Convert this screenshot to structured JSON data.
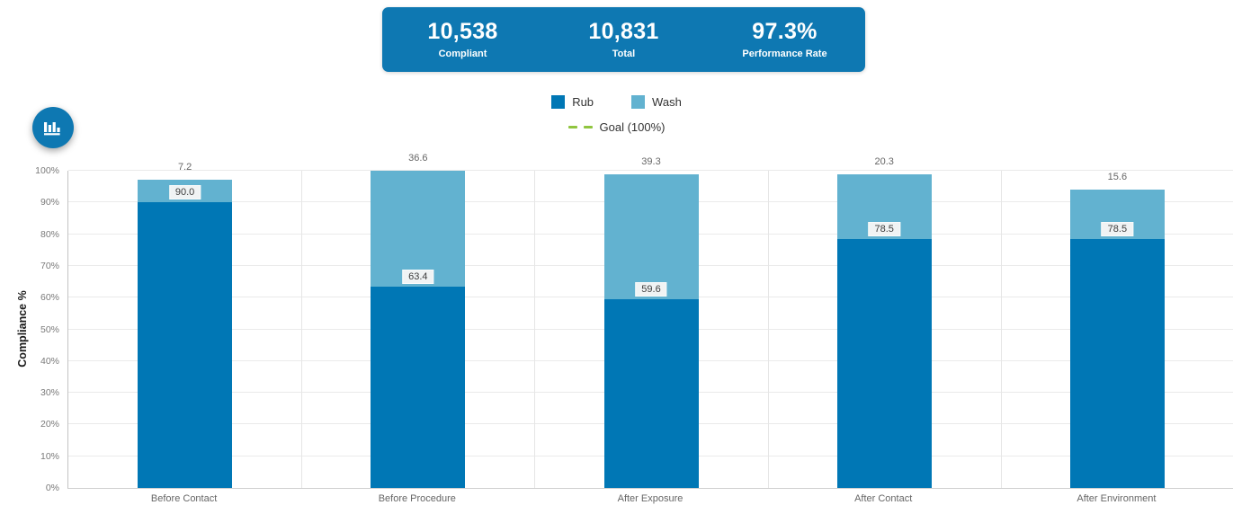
{
  "summary": {
    "background": "#0e78b2",
    "stats": [
      {
        "value": "10,538",
        "label": "Compliant"
      },
      {
        "value": "10,831",
        "label": "Total"
      },
      {
        "value": "97.3%",
        "label": "Performance Rate"
      }
    ]
  },
  "toolbar": {
    "chart_button_icon": "bar-chart-icon"
  },
  "chart_data": {
    "type": "bar",
    "stacked": true,
    "categories": [
      "Before Contact",
      "Before Procedure",
      "After Exposure",
      "After Contact",
      "After Environment"
    ],
    "series": [
      {
        "name": "Rub",
        "color": "#0077b5",
        "values": [
          90.0,
          63.4,
          59.6,
          78.5,
          78.5
        ]
      },
      {
        "name": "Wash",
        "color": "#62b2d0",
        "values": [
          7.2,
          36.6,
          39.3,
          20.3,
          15.6
        ]
      }
    ],
    "goal": {
      "label": "Goal (100%)",
      "value": 100,
      "color": "#90c53f"
    },
    "ylabel": "Compliance %",
    "ylim": [
      0,
      100
    ],
    "ytick_step": 10,
    "ytick_suffix": "%",
    "value_label_decimals": 1,
    "grid": true,
    "legend_position": "top"
  }
}
